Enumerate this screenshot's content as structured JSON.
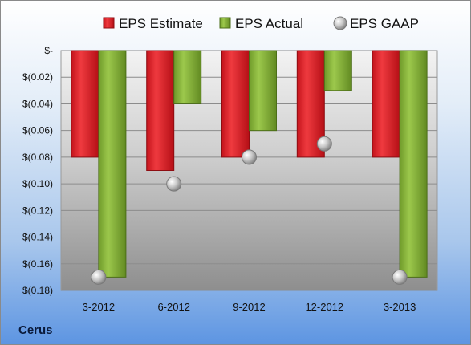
{
  "company": "Cerus",
  "chart_data": {
    "type": "bar",
    "title": "",
    "xlabel": "",
    "ylabel": "",
    "categories": [
      "3-2012",
      "6-2012",
      "9-2012",
      "12-2012",
      "3-2013"
    ],
    "series": [
      {
        "name": "EPS Estimate",
        "kind": "bar",
        "color": "#e0202a",
        "values": [
          -0.08,
          -0.09,
          -0.08,
          -0.08,
          -0.08
        ]
      },
      {
        "name": "EPS Actual",
        "kind": "bar",
        "color": "#8fbc3e",
        "values": [
          -0.17,
          -0.04,
          -0.06,
          -0.03,
          -0.17
        ]
      },
      {
        "name": "EPS GAAP",
        "kind": "marker",
        "color": "#c8c8c8",
        "values": [
          -0.17,
          -0.1,
          -0.08,
          -0.07,
          -0.17
        ]
      }
    ],
    "ylim": [
      -0.18,
      0
    ],
    "yticks": [
      0,
      -0.02,
      -0.04,
      -0.06,
      -0.08,
      -0.1,
      -0.12,
      -0.14,
      -0.16,
      -0.18
    ],
    "ytick_labels": [
      "$-",
      "$(0.02)",
      "$(0.04)",
      "$(0.06)",
      "$(0.08)",
      "$(0.10)",
      "$(0.12)",
      "$(0.14)",
      "$(0.16)",
      "$(0.18)"
    ],
    "grid": true,
    "legend": "top"
  }
}
